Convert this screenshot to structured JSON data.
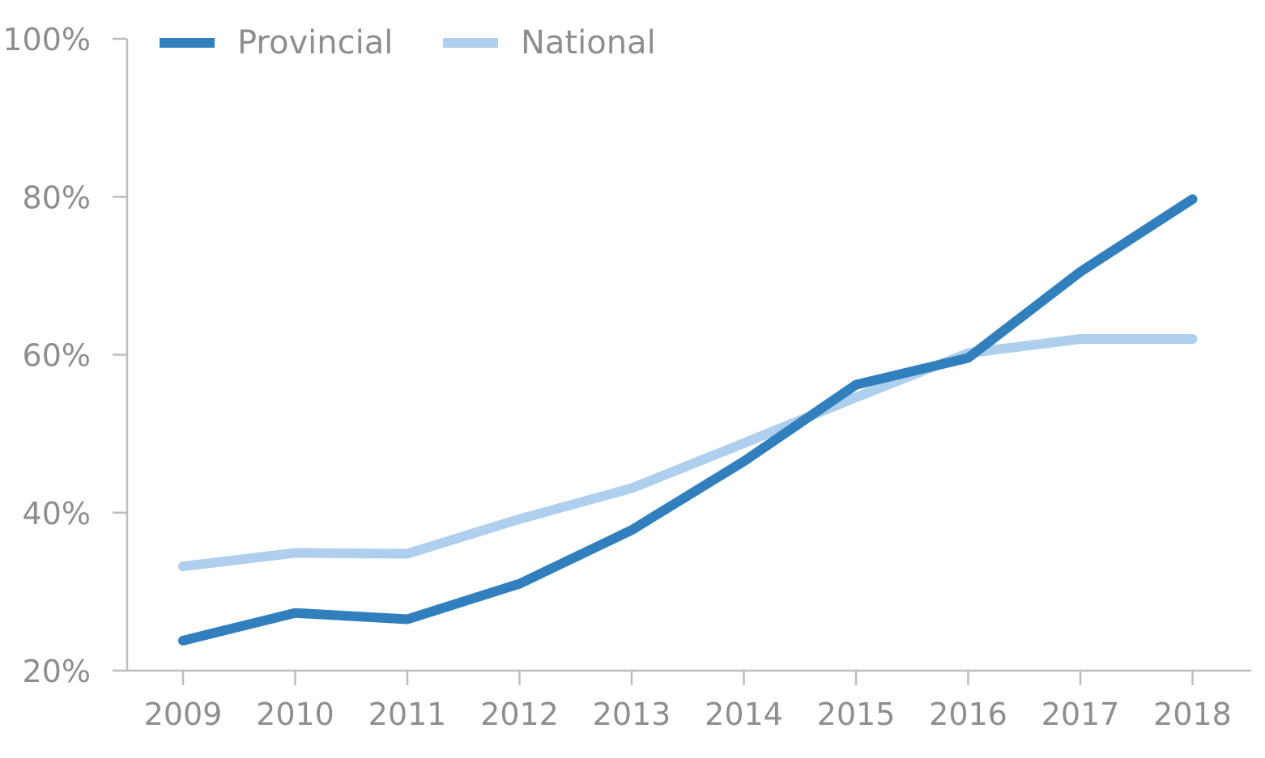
{
  "chart_data": {
    "type": "line",
    "x": [
      "2009",
      "2010",
      "2011",
      "2012",
      "2013",
      "2014",
      "2015",
      "2016",
      "2017",
      "2018"
    ],
    "series": [
      {
        "name": "Provincial",
        "color": "#3180bd",
        "values": [
          23.8,
          27.3,
          26.5,
          31.0,
          37.8,
          46.5,
          56.2,
          59.6,
          70.5,
          79.7
        ]
      },
      {
        "name": "National",
        "color": "#aed0ee",
        "values": [
          33.2,
          34.9,
          34.8,
          39.2,
          43.1,
          48.8,
          54.6,
          60.2,
          62.0,
          62.0
        ]
      }
    ],
    "y_ticks": [
      20,
      40,
      60,
      80,
      100
    ],
    "y_tick_labels": [
      "20%",
      "40%",
      "60%",
      "80%",
      "100%"
    ],
    "ylim": [
      20,
      100
    ],
    "title": "",
    "xlabel": "",
    "ylabel": "",
    "grid": false,
    "legend": "top-left",
    "axis_color": "#bdbdbd",
    "label_color": "#8e8e8e"
  }
}
